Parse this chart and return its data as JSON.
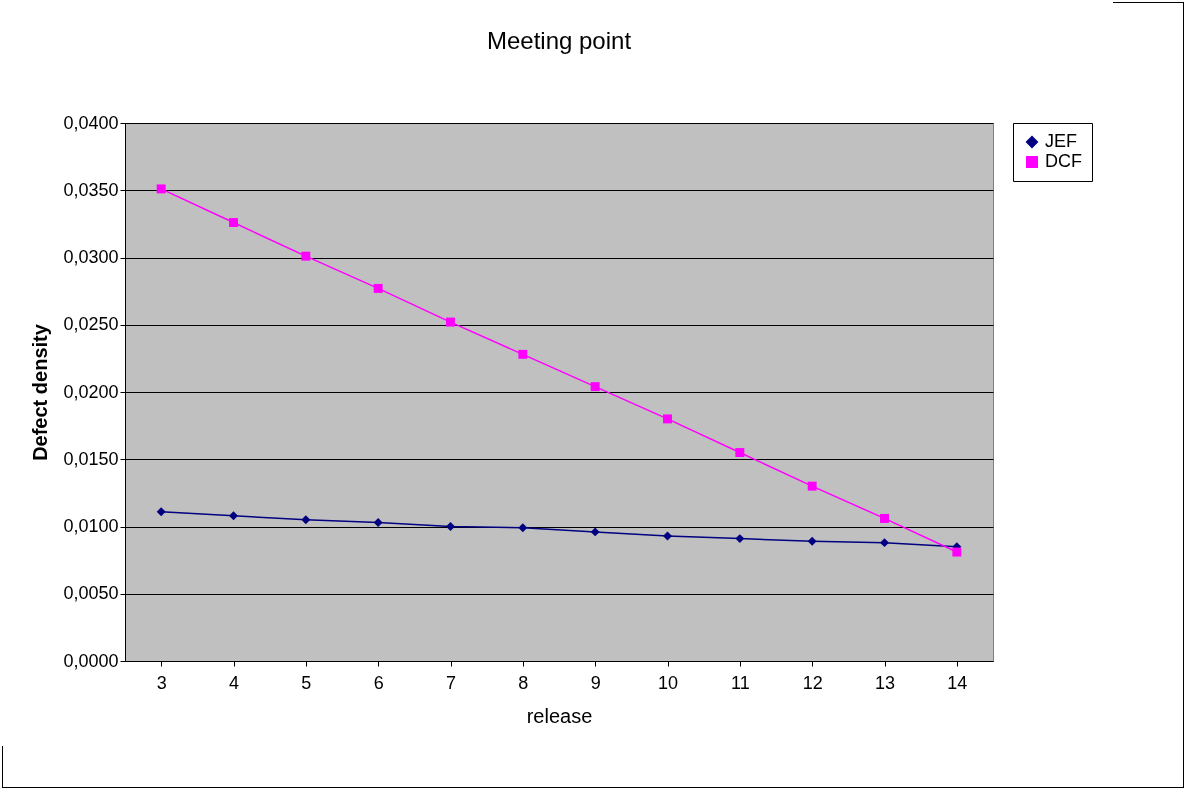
{
  "chart_data": {
    "type": "line",
    "title": "Meeting point",
    "xlabel": "release",
    "ylabel": "Defect density",
    "categories": [
      "3",
      "4",
      "5",
      "6",
      "7",
      "8",
      "9",
      "10",
      "11",
      "12",
      "13",
      "14"
    ],
    "series": [
      {
        "name": "JEF",
        "color": "#000080",
        "marker": "diamond",
        "values": [
          0.0111,
          0.0108,
          0.0105,
          0.0103,
          0.01,
          0.0099,
          0.0096,
          0.0093,
          0.0091,
          0.0089,
          0.0088,
          0.0085
        ]
      },
      {
        "name": "DCF",
        "color": "#ff00ff",
        "marker": "square",
        "values": [
          0.0351,
          0.0326,
          0.0301,
          0.0277,
          0.0252,
          0.0228,
          0.0204,
          0.018,
          0.0155,
          0.013,
          0.0106,
          0.0081
        ]
      }
    ],
    "ylim": [
      0,
      0.04
    ],
    "yticks": [
      {
        "value": 0,
        "label": "0,0000"
      },
      {
        "value": 0.005,
        "label": "0,0050"
      },
      {
        "value": 0.01,
        "label": "0,0100"
      },
      {
        "value": 0.015,
        "label": "0,0150"
      },
      {
        "value": 0.02,
        "label": "0,0200"
      },
      {
        "value": 0.025,
        "label": "0,0250"
      },
      {
        "value": 0.03,
        "label": "0,0300"
      },
      {
        "value": 0.035,
        "label": "0,0350"
      },
      {
        "value": 0.04,
        "label": "0,0400"
      }
    ],
    "grid": "y",
    "legend": "right",
    "line_style": "solid"
  }
}
